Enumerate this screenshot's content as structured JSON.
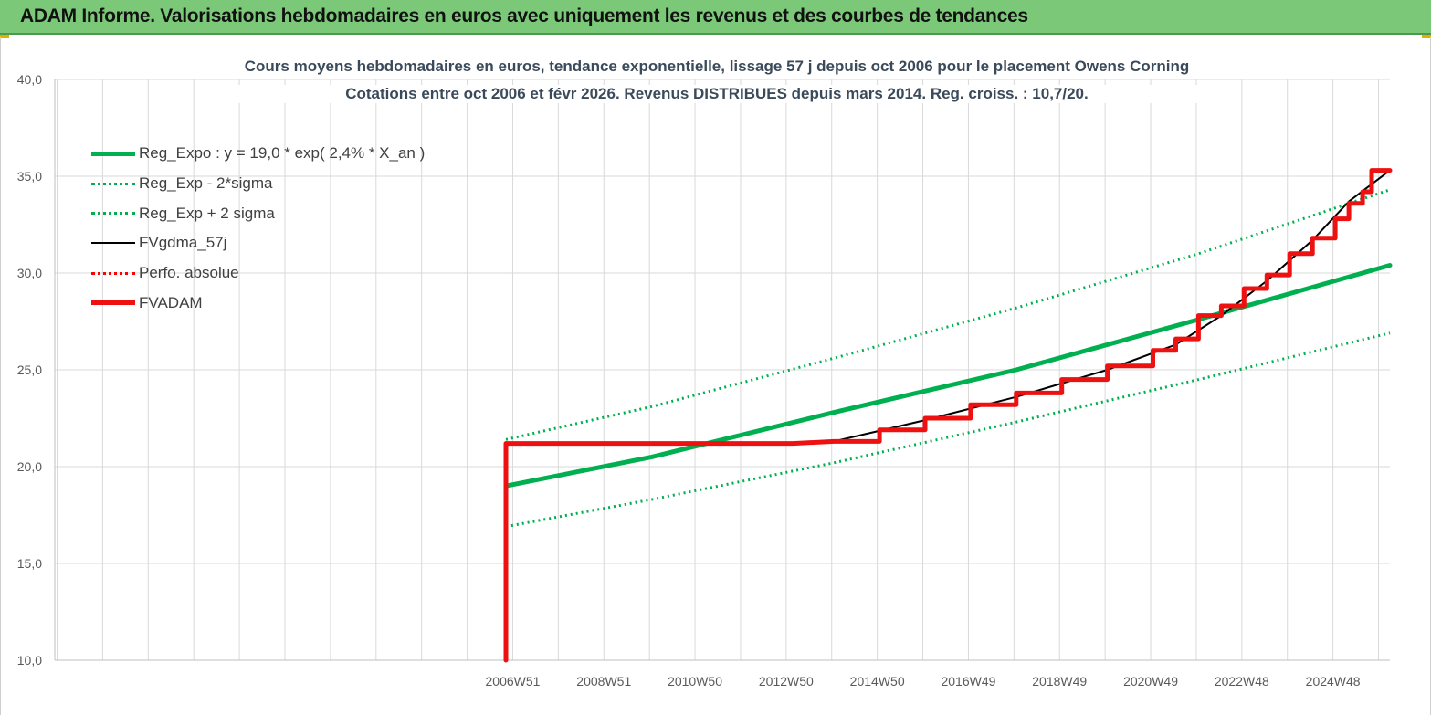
{
  "banner": {
    "title": "ADAM Informe. Valorisations hebdomadaires en euros avec uniquement les revenus et des courbes de tendances"
  },
  "chart_data": {
    "type": "line",
    "title": "Cours moyens hebdomadaires en euros, tendance exponentielle, lissage 57 j depuis oct 2006 pour le placement Owens Corning",
    "subtitle": "Cotations entre oct 2006 et févr 2026. Revenus DISTRIBUES depuis mars 2014. Reg. croiss. : 10,7/20.",
    "xlabel": "",
    "ylabel": "",
    "ylim": [
      10,
      40
    ],
    "yticks": [
      "10,0",
      "15,0",
      "20,0",
      "25,0",
      "30,0",
      "35,0",
      "40,0"
    ],
    "xlim": [
      1996.9,
      2026.2
    ],
    "xticks": [
      {
        "label": "2006W51",
        "x": 2006.95
      },
      {
        "label": "2008W51",
        "x": 2008.95
      },
      {
        "label": "2010W50",
        "x": 2010.95
      },
      {
        "label": "2012W50",
        "x": 2012.95
      },
      {
        "label": "2014W50",
        "x": 2014.95
      },
      {
        "label": "2016W49",
        "x": 2016.95
      },
      {
        "label": "2018W49",
        "x": 2018.95
      },
      {
        "label": "2020W49",
        "x": 2020.95
      },
      {
        "label": "2022W48",
        "x": 2022.95
      },
      {
        "label": "2024W48",
        "x": 2024.95
      }
    ],
    "grid": true,
    "legend_position": "top-left",
    "series": [
      {
        "name": "Reg_Expo : y = 19,0 * exp( 2,4% *  X_an )",
        "style": "solid-thick",
        "color": "#00b050",
        "x": [
          2006.8,
          2010,
          2014,
          2018,
          2022,
          2026.2
        ],
        "y": [
          19.0,
          20.5,
          22.8,
          25.0,
          27.6,
          30.4
        ]
      },
      {
        "name": "Reg_Exp - 2*sigma",
        "style": "dotted",
        "color": "#00b050",
        "x": [
          2006.8,
          2010,
          2014,
          2018,
          2022,
          2026.2
        ],
        "y": [
          16.9,
          18.3,
          20.2,
          22.3,
          24.5,
          26.9
        ]
      },
      {
        "name": "Reg_Exp + 2 sigma",
        "style": "dotted",
        "color": "#00b050",
        "x": [
          2006.8,
          2010,
          2014,
          2018,
          2022,
          2026.2
        ],
        "y": [
          21.4,
          23.1,
          25.6,
          28.2,
          31.0,
          34.3
        ]
      },
      {
        "name": "FVgdma_57j",
        "style": "solid",
        "color": "#000000",
        "x": [
          2014.0,
          2016,
          2018,
          2020,
          2021.5,
          2022.5,
          2023.5,
          2024.5,
          2025.3,
          2026.2
        ],
        "y": [
          21.3,
          22.4,
          23.6,
          25.0,
          26.3,
          27.8,
          29.6,
          31.7,
          33.7,
          35.3
        ]
      },
      {
        "name": "Perfo. absolue",
        "style": "dotted",
        "color": "#ff0000",
        "x": [],
        "y": []
      },
      {
        "name": "FVADAM",
        "style": "solid-thick",
        "color": "#ee1111",
        "x": [
          2006.8,
          2006.8,
          2013.1,
          2014.0,
          2015,
          2016,
          2017,
          2018,
          2019,
          2020,
          2021,
          2021.5,
          2022,
          2022.5,
          2023,
          2023.5,
          2024,
          2024.5,
          2025,
          2025.3,
          2025.6,
          2025.8,
          2026.2
        ],
        "y": [
          10.0,
          21.2,
          21.2,
          21.3,
          21.9,
          22.5,
          23.2,
          23.8,
          24.5,
          25.2,
          26.0,
          26.6,
          27.8,
          28.3,
          29.2,
          29.9,
          31.0,
          31.8,
          32.8,
          33.6,
          34.2,
          35.3,
          35.3
        ]
      }
    ]
  }
}
